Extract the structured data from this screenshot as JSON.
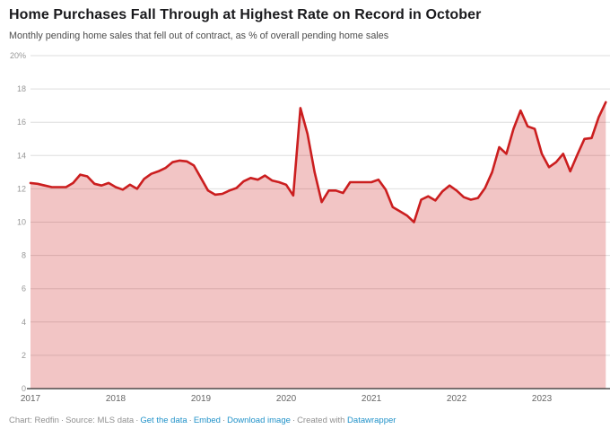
{
  "header": {
    "title": "Home Purchases Fall Through at Highest Rate on Record in October",
    "subtitle": "Monthly pending home sales that fell out of contract, as % of overall pending home sales"
  },
  "chart_data": {
    "type": "area",
    "title": "Home Purchases Fall Through at Highest Rate on Record in October",
    "subtitle": "Monthly pending home sales that fell out of contract, as % of overall pending home sales",
    "ylim": [
      0,
      20
    ],
    "y_tick_step": 2,
    "y_tick_labels": [
      "0",
      "2",
      "4",
      "6",
      "8",
      "10",
      "12",
      "14",
      "16",
      "18",
      "20%"
    ],
    "x_tick_years": [
      "2017",
      "2018",
      "2019",
      "2020",
      "2021",
      "2022",
      "2023"
    ],
    "grid": true,
    "legend": "none",
    "months": [
      "2017-01",
      "2017-02",
      "2017-03",
      "2017-04",
      "2017-05",
      "2017-06",
      "2017-07",
      "2017-08",
      "2017-09",
      "2017-10",
      "2017-11",
      "2017-12",
      "2018-01",
      "2018-02",
      "2018-03",
      "2018-04",
      "2018-05",
      "2018-06",
      "2018-07",
      "2018-08",
      "2018-09",
      "2018-10",
      "2018-11",
      "2018-12",
      "2019-01",
      "2019-02",
      "2019-03",
      "2019-04",
      "2019-05",
      "2019-06",
      "2019-07",
      "2019-08",
      "2019-09",
      "2019-10",
      "2019-11",
      "2019-12",
      "2020-01",
      "2020-02",
      "2020-03",
      "2020-04",
      "2020-05",
      "2020-06",
      "2020-07",
      "2020-08",
      "2020-09",
      "2020-10",
      "2020-11",
      "2020-12",
      "2021-01",
      "2021-02",
      "2021-03",
      "2021-04",
      "2021-05",
      "2021-06",
      "2021-07",
      "2021-08",
      "2021-09",
      "2021-10",
      "2021-11",
      "2021-12",
      "2022-01",
      "2022-02",
      "2022-03",
      "2022-04",
      "2022-05",
      "2022-06",
      "2022-07",
      "2022-08",
      "2022-09",
      "2022-10",
      "2022-11",
      "2022-12",
      "2023-01",
      "2023-02",
      "2023-03",
      "2023-04",
      "2023-05",
      "2023-06",
      "2023-07",
      "2023-08",
      "2023-09",
      "2023-10"
    ],
    "values": [
      12.35,
      12.3,
      12.2,
      12.1,
      12.1,
      12.1,
      12.35,
      12.85,
      12.75,
      12.3,
      12.2,
      12.35,
      12.1,
      11.95,
      12.25,
      12.0,
      12.6,
      12.9,
      13.05,
      13.25,
      13.6,
      13.7,
      13.65,
      13.4,
      12.65,
      11.9,
      11.65,
      11.7,
      11.9,
      12.05,
      12.45,
      12.65,
      12.55,
      12.8,
      12.5,
      12.4,
      12.25,
      11.6,
      16.85,
      15.3,
      13.0,
      11.2,
      11.9,
      11.9,
      11.75,
      12.4,
      12.4,
      12.4,
      12.4,
      12.55,
      11.95,
      10.9,
      10.65,
      10.4,
      10.0,
      11.35,
      11.55,
      11.3,
      11.85,
      12.2,
      11.9,
      11.5,
      11.35,
      11.45,
      12.05,
      13.0,
      14.5,
      14.1,
      15.6,
      16.7,
      15.75,
      15.6,
      14.1,
      13.3,
      13.6,
      14.1,
      13.05,
      14.05,
      15.0,
      15.05,
      16.3,
      17.2
    ],
    "latest_point": {
      "month": "2023-10",
      "value": 17.2
    }
  },
  "colors": {
    "line": "#cb1e1f",
    "area_fill": "#cb1e1f",
    "area_opacity": 0.26,
    "grid": "#dedede",
    "baseline": "#2d2d2d",
    "y_label": "#979797",
    "x_label": "#666666",
    "title": "#1a1a1d",
    "subtitle": "#4c4c4c",
    "footer_text": "#909090",
    "link": "#2192c9"
  },
  "footer": {
    "separator": "·",
    "chart_credit": "Chart: Redfin",
    "source_credit": "Source: MLS data",
    "created_with": "Created with",
    "links": {
      "get_the_data": "Get the data",
      "embed": "Embed",
      "download_image": "Download image",
      "datawrapper": "Datawrapper"
    }
  }
}
